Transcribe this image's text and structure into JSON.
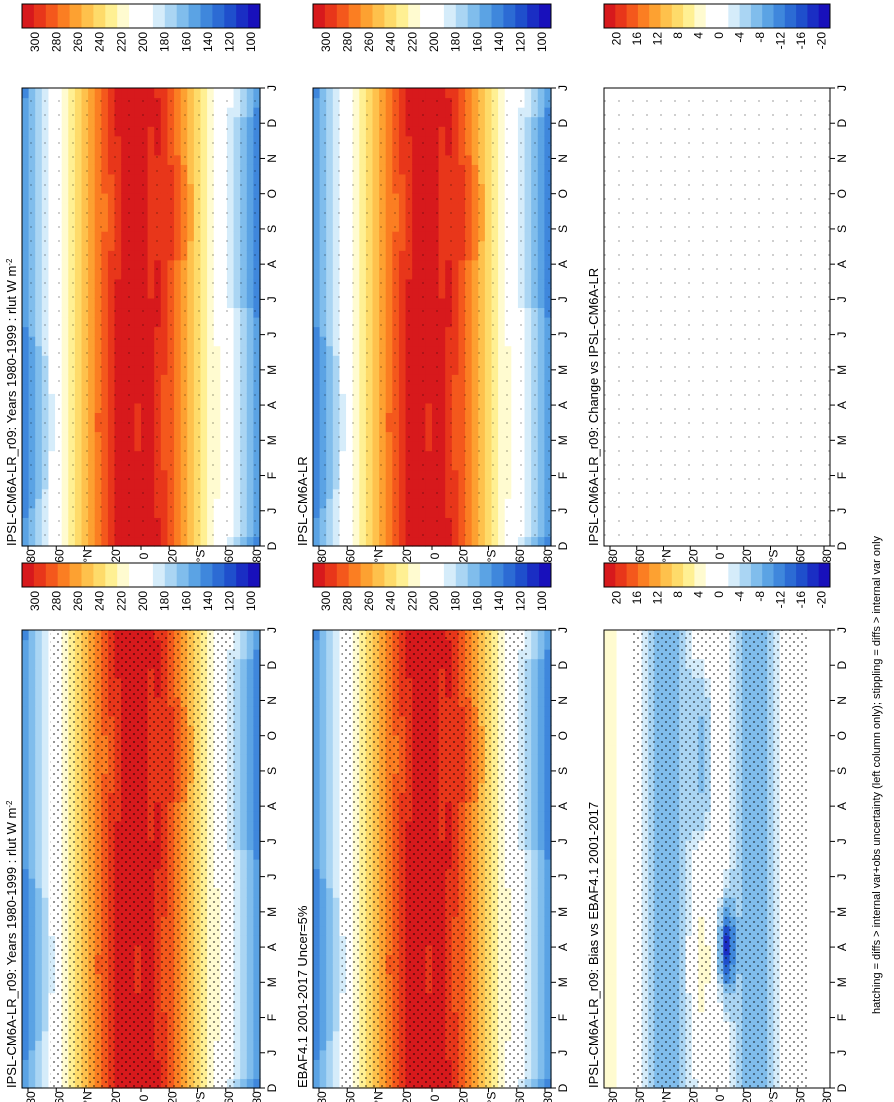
{
  "footnote": "hatching = diffs > internal var+obs uncertainty (left column only); stippling = diffs > internal var only",
  "months": [
    "J",
    "F",
    "M",
    "A",
    "M",
    "J",
    "J",
    "A",
    "S",
    "O",
    "N",
    "D",
    "J"
  ],
  "month_axis_start": "D",
  "lat_labels": [
    "80",
    "60",
    "°N",
    "20",
    "0",
    "20",
    "°S",
    "60",
    "80"
  ],
  "colorbars": {
    "abs": {
      "labels": [
        "300",
        "280",
        "260",
        "240",
        "220",
        "200",
        "180",
        "160",
        "140",
        "120",
        "100"
      ],
      "colors": [
        "#d7191c",
        "#e8361a",
        "#f4581c",
        "#fb7e22",
        "#fda131",
        "#fec14c",
        "#fedb6a",
        "#fff093",
        "#fffbd0",
        "#ffffff",
        "#ffffff",
        "#d5ecfa",
        "#aad5f3",
        "#80bdec",
        "#5ba3e4",
        "#3f87dc",
        "#2c6bd4",
        "#1f4fcc",
        "#1a2ec4",
        "#1810bb"
      ]
    },
    "diff": {
      "labels": [
        "20",
        "16",
        "12",
        "8",
        "4",
        "0",
        "-4",
        "-8",
        "-12",
        "-16",
        "-20"
      ],
      "colors": [
        "#d7191c",
        "#e8361a",
        "#f4581c",
        "#fb7e22",
        "#fda131",
        "#fec14c",
        "#fedb6a",
        "#fff093",
        "#fffbd0",
        "#ffffff",
        "#ffffff",
        "#d5ecfa",
        "#aad5f3",
        "#80bdec",
        "#5ba3e4",
        "#3f87dc",
        "#2c6bd4",
        "#1f4fcc",
        "#1a2ec4",
        "#1810bb"
      ]
    }
  },
  "chart_data": [
    {
      "type": "heatmap",
      "panel": "top-left",
      "title": "IPSL-CM6A-LR_r09: Years 1980-1999 : rlut W m",
      "title_sup": "-2",
      "x": "month",
      "y": "latitude",
      "units": "W m-2"
    },
    {
      "type": "heatmap",
      "panel": "top-right",
      "title": "IPSL-CM6A-LR_r09: Years 1980-1999 : rlut W m",
      "title_sup": "-2",
      "x": "month",
      "y": "latitude",
      "units": "W m-2"
    },
    {
      "type": "heatmap",
      "panel": "middle-left",
      "title": "EBAF4.1 2001-2017 Uncer=5%",
      "title_sup": "",
      "x": "month",
      "y": "latitude"
    },
    {
      "type": "heatmap",
      "panel": "middle-right",
      "title": "IPSL-CM6A-LR",
      "title_sup": "",
      "x": "month",
      "y": "latitude"
    },
    {
      "type": "heatmap",
      "panel": "bottom-left",
      "title": "IPSL-CM6A-LR_r09: Bias vs EBAF4.1 2001-2017",
      "title_sup": "",
      "x": "month",
      "y": "latitude"
    },
    {
      "type": "heatmap",
      "panel": "bottom-right",
      "title": "IPSL-CM6A-LR_r09: Change vs IPSL-CM6A-LR",
      "title_sup": "",
      "x": "month",
      "y": "latitude"
    }
  ]
}
